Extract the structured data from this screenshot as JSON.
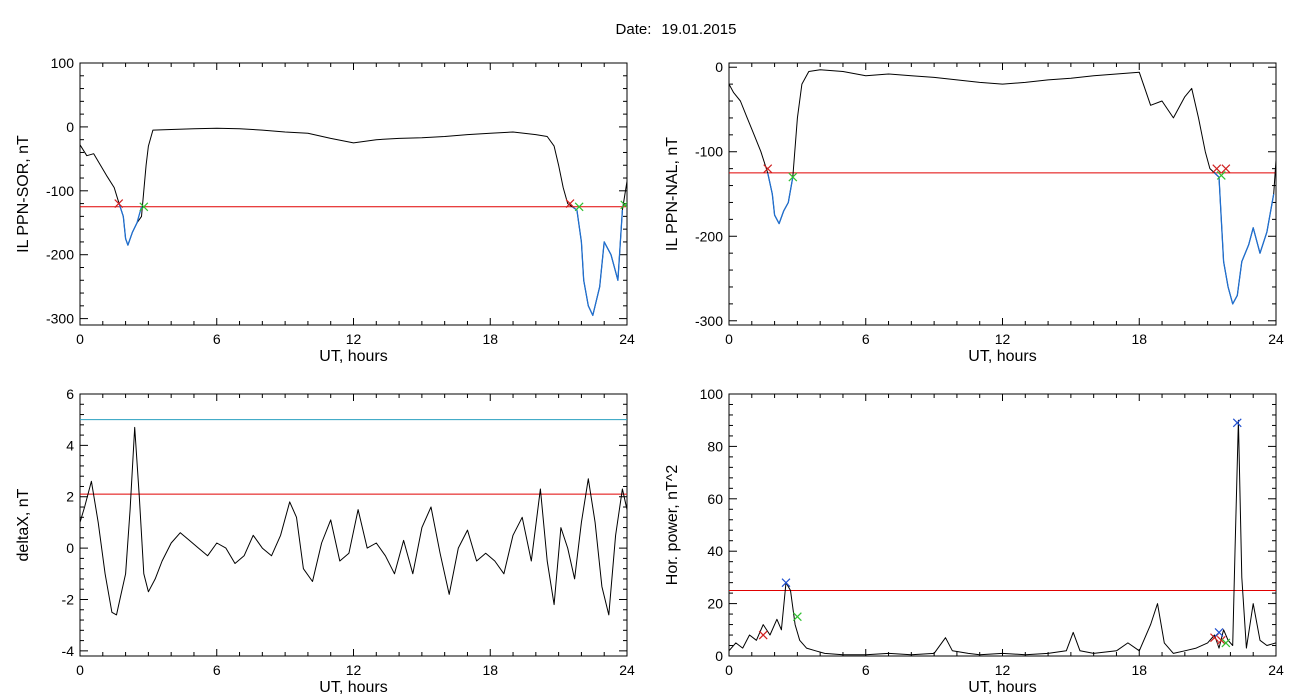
{
  "figure": {
    "title_label": "Date:",
    "title_date": "19.01.2015"
  },
  "colors": {
    "axis": "#000000",
    "trace": "#000000",
    "threshold": "#e00000",
    "segment": "#1f6fd0",
    "upper_line": "#2aa0c0",
    "marker_start": "#d02020",
    "marker_end": "#30c030",
    "marker_peak": "#2050d0"
  },
  "chart_data": [
    {
      "type": "line",
      "ylabel": "IL PPN-SOR, nT",
      "xlabel": "UT, hours",
      "xlim": [
        0,
        24
      ],
      "ylim": [
        -310,
        100
      ],
      "xticks": [
        0,
        6,
        12,
        18,
        24
      ],
      "yticks": [
        -300,
        -200,
        -100,
        0,
        100
      ],
      "threshold": -125,
      "series": [
        {
          "role": "trace",
          "x": [
            0,
            0.3,
            0.6,
            0.9,
            1.2,
            1.5,
            1.7,
            1.9,
            2.0,
            2.1,
            2.3,
            2.5,
            2.7,
            2.8,
            2.9,
            3.0,
            3.2,
            4,
            5,
            6,
            7,
            8,
            9,
            10,
            11,
            12,
            13,
            14,
            15,
            16,
            17,
            18,
            19,
            20,
            20.5,
            20.8,
            21.0,
            21.2,
            21.4,
            21.6,
            21.8,
            22.0,
            22.1,
            22.3,
            22.5,
            22.8,
            23.0,
            23.3,
            23.6,
            23.8,
            24
          ],
          "y": [
            -28,
            -45,
            -42,
            -60,
            -78,
            -95,
            -118,
            -140,
            -175,
            -185,
            -165,
            -150,
            -140,
            -100,
            -60,
            -30,
            -5,
            -4,
            -3,
            -2,
            -3,
            -5,
            -8,
            -10,
            -18,
            -25,
            -20,
            -18,
            -17,
            -15,
            -12,
            -10,
            -8,
            -12,
            -15,
            -30,
            -60,
            -95,
            -120,
            -125,
            -130,
            -180,
            -240,
            -280,
            -295,
            -250,
            -180,
            -200,
            -240,
            -130,
            -85
          ]
        },
        {
          "role": "segment",
          "x": [
            1.7,
            1.9,
            2.0,
            2.1,
            2.3,
            2.5,
            2.7
          ],
          "y": [
            -118,
            -140,
            -175,
            -185,
            -165,
            -150,
            -125
          ]
        },
        {
          "role": "segment",
          "x": [
            21.6,
            21.8,
            22.0,
            22.1,
            22.3,
            22.5,
            22.8,
            23.0,
            23.3,
            23.6,
            23.8
          ],
          "y": [
            -125,
            -130,
            -180,
            -240,
            -280,
            -295,
            -250,
            -180,
            -200,
            -240,
            -130
          ]
        },
        {
          "role": "marker-start",
          "x": [
            1.7,
            21.5
          ],
          "y": [
            -120,
            -120
          ]
        },
        {
          "role": "marker-end",
          "x": [
            2.8,
            21.9,
            23.9
          ],
          "y": [
            -125,
            -125,
            -122
          ]
        }
      ]
    },
    {
      "type": "line",
      "ylabel": "IL PPN-NAL, nT",
      "xlabel": "UT, hours",
      "xlim": [
        0,
        24
      ],
      "ylim": [
        -305,
        5
      ],
      "xticks": [
        0,
        6,
        12,
        18,
        24
      ],
      "yticks": [
        -300,
        -200,
        -100,
        0
      ],
      "threshold": -125,
      "series": [
        {
          "role": "trace",
          "x": [
            0,
            0.2,
            0.5,
            0.8,
            1.1,
            1.4,
            1.7,
            1.9,
            2.0,
            2.2,
            2.4,
            2.6,
            2.8,
            3.0,
            3.2,
            3.5,
            4,
            5,
            6,
            7,
            8,
            9,
            10,
            11,
            12,
            13,
            14,
            15,
            16,
            17,
            18,
            18.5,
            19,
            19.5,
            20,
            20.3,
            20.6,
            20.9,
            21.1,
            21.3,
            21.5,
            21.7,
            21.9,
            22.1,
            22.3,
            22.5,
            22.8,
            23.0,
            23.3,
            23.6,
            23.9,
            24
          ],
          "y": [
            -20,
            -30,
            -40,
            -60,
            -80,
            -100,
            -125,
            -150,
            -175,
            -185,
            -170,
            -160,
            -130,
            -60,
            -20,
            -5,
            -3,
            -5,
            -10,
            -8,
            -10,
            -12,
            -15,
            -18,
            -20,
            -18,
            -15,
            -13,
            -10,
            -8,
            -6,
            -45,
            -40,
            -60,
            -35,
            -25,
            -60,
            -100,
            -120,
            -125,
            -130,
            -230,
            -260,
            -280,
            -270,
            -230,
            -210,
            -190,
            -220,
            -195,
            -150,
            -110
          ]
        },
        {
          "role": "segment",
          "x": [
            1.7,
            1.9,
            2.0,
            2.2,
            2.4,
            2.6,
            2.8
          ],
          "y": [
            -125,
            -150,
            -175,
            -185,
            -170,
            -160,
            -130
          ]
        },
        {
          "role": "segment",
          "x": [
            21.3,
            21.5,
            21.7,
            21.9,
            22.1,
            22.3,
            22.5,
            22.8,
            23.0,
            23.3,
            23.6,
            23.9
          ],
          "y": [
            -125,
            -130,
            -230,
            -260,
            -280,
            -270,
            -230,
            -210,
            -190,
            -220,
            -195,
            -150
          ]
        },
        {
          "role": "marker-start",
          "x": [
            1.7,
            21.4,
            21.8
          ],
          "y": [
            -120,
            -120,
            -120
          ]
        },
        {
          "role": "marker-end",
          "x": [
            2.8,
            21.6
          ],
          "y": [
            -130,
            -128
          ]
        }
      ]
    },
    {
      "type": "line",
      "ylabel": "deltaX, nT",
      "xlabel": "UT, hours",
      "xlim": [
        0,
        24
      ],
      "ylim": [
        -4.2,
        6
      ],
      "xticks": [
        0,
        6,
        12,
        18,
        24
      ],
      "yticks": [
        -4,
        -2,
        0,
        2,
        4,
        6
      ],
      "threshold": 2.1,
      "upper_line": 5,
      "series": [
        {
          "role": "trace",
          "x": [
            0,
            0.2,
            0.5,
            0.8,
            1.1,
            1.4,
            1.6,
            1.8,
            2.0,
            2.2,
            2.4,
            2.6,
            2.8,
            3.0,
            3.3,
            3.6,
            4.0,
            4.4,
            4.8,
            5.2,
            5.6,
            6.0,
            6.4,
            6.8,
            7.2,
            7.6,
            8.0,
            8.4,
            8.8,
            9.2,
            9.5,
            9.8,
            10.2,
            10.6,
            11.0,
            11.4,
            11.8,
            12.2,
            12.6,
            13.0,
            13.4,
            13.8,
            14.2,
            14.6,
            15.0,
            15.4,
            15.8,
            16.2,
            16.6,
            17.0,
            17.4,
            17.8,
            18.2,
            18.6,
            19.0,
            19.4,
            19.8,
            20.2,
            20.5,
            20.8,
            21.1,
            21.4,
            21.7,
            22.0,
            22.3,
            22.6,
            22.9,
            23.2,
            23.5,
            23.8,
            24
          ],
          "y": [
            1.0,
            1.6,
            2.6,
            1.0,
            -1.0,
            -2.5,
            -2.6,
            -1.8,
            -1.0,
            1.5,
            4.7,
            2.0,
            -1.0,
            -1.7,
            -1.2,
            -0.5,
            0.2,
            0.6,
            0.3,
            0.0,
            -0.3,
            0.2,
            0.0,
            -0.6,
            -0.3,
            0.5,
            0.0,
            -0.3,
            0.5,
            1.8,
            1.2,
            -0.8,
            -1.3,
            0.2,
            1.1,
            -0.5,
            -0.2,
            1.5,
            0.0,
            0.2,
            -0.3,
            -1.0,
            0.3,
            -1.0,
            0.8,
            1.6,
            -0.2,
            -1.8,
            0.0,
            0.7,
            -0.5,
            -0.2,
            -0.5,
            -1.0,
            0.5,
            1.2,
            -0.5,
            2.3,
            -0.5,
            -2.2,
            0.8,
            0.0,
            -1.2,
            1.0,
            2.7,
            1.0,
            -1.5,
            -2.6,
            0.5,
            2.3,
            1.5
          ]
        }
      ]
    },
    {
      "type": "line",
      "ylabel": "Hor. power, nT^2",
      "xlabel": "UT, hours",
      "xlim": [
        0,
        24
      ],
      "ylim": [
        0,
        100
      ],
      "xticks": [
        0,
        6,
        12,
        18,
        24
      ],
      "yticks": [
        0,
        20,
        40,
        60,
        80,
        100
      ],
      "threshold": 25,
      "series": [
        {
          "role": "trace",
          "x": [
            0,
            0.3,
            0.6,
            0.9,
            1.2,
            1.5,
            1.8,
            2.1,
            2.3,
            2.5,
            2.7,
            2.9,
            3.1,
            3.4,
            3.8,
            4.2,
            5,
            6,
            7,
            8,
            9,
            9.5,
            9.8,
            10.5,
            11,
            12,
            13,
            14,
            14.8,
            15.1,
            15.4,
            16,
            17,
            17.5,
            18,
            18.5,
            18.8,
            19.1,
            19.5,
            20,
            20.5,
            21,
            21.3,
            21.5,
            21.7,
            21.9,
            22.1,
            22.2,
            22.35,
            22.5,
            22.7,
            23.0,
            23.3,
            23.6,
            24
          ],
          "y": [
            2,
            5,
            3,
            8,
            6,
            12,
            8,
            14,
            10,
            28,
            25,
            12,
            6,
            3,
            2,
            1,
            0.5,
            0.5,
            1,
            0.5,
            1,
            7,
            2,
            1,
            0.5,
            1,
            0.5,
            1,
            2,
            9,
            2,
            1,
            2,
            5,
            2,
            12,
            20,
            5,
            1,
            2,
            3,
            5,
            8,
            3,
            10,
            6,
            4,
            40,
            90,
            30,
            3,
            20,
            6,
            4,
            5
          ]
        },
        {
          "role": "marker-start",
          "x": [
            1.5,
            21.3,
            21.6
          ],
          "y": [
            8,
            7,
            6
          ]
        },
        {
          "role": "marker-peak",
          "x": [
            2.5,
            21.5,
            22.3
          ],
          "y": [
            28,
            9,
            89
          ]
        },
        {
          "role": "marker-end",
          "x": [
            3.0,
            21.8
          ],
          "y": [
            15,
            5
          ]
        }
      ]
    }
  ]
}
